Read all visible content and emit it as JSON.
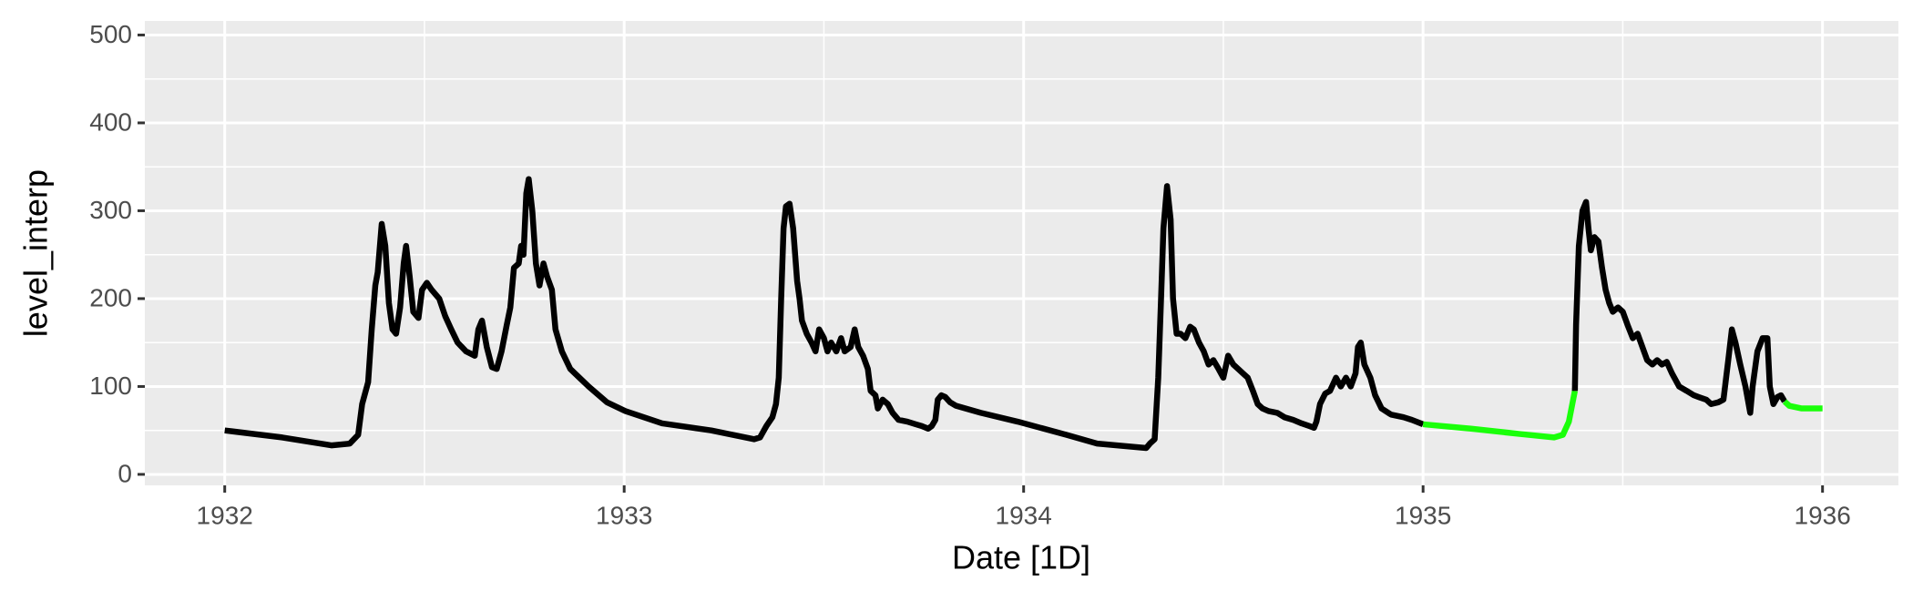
{
  "chart_data": {
    "type": "line",
    "x_label": "Date [1D]",
    "y_label": "level_interp",
    "xlim": [
      1931.8,
      1936.19
    ],
    "ylim": [
      -12.5,
      516
    ],
    "xticks": [
      1932,
      1933,
      1934,
      1935,
      1936
    ],
    "yticks": [
      0,
      100,
      200,
      300,
      400,
      500
    ],
    "grid": true,
    "minor_grid": true,
    "background": "#ebebeb",
    "series": [
      {
        "color": "#000000",
        "x": [
          1932.0,
          1932.144,
          1932.267,
          1932.313,
          1932.334,
          1932.344,
          1932.359,
          1932.368,
          1932.377,
          1932.383,
          1932.393,
          1932.402,
          1932.411,
          1932.42,
          1932.429,
          1932.439,
          1932.448,
          1932.454,
          1932.463,
          1932.472,
          1932.485,
          1932.494,
          1932.506,
          1932.518,
          1932.537,
          1932.552,
          1932.567,
          1932.583,
          1932.604,
          1932.626,
          1932.635,
          1932.644,
          1932.656,
          1932.669,
          1932.681,
          1932.693,
          1932.706,
          1932.715,
          1932.724,
          1932.736,
          1932.742,
          1932.748,
          1932.755,
          1932.761,
          1932.77,
          1932.779,
          1932.788,
          1932.798,
          1932.807,
          1932.819,
          1932.828,
          1932.844,
          1932.865,
          1932.911,
          1932.957,
          1933.003,
          1933.095,
          1933.218,
          1933.325,
          1933.34,
          1933.356,
          1933.371,
          1933.38,
          1933.387,
          1933.393,
          1933.399,
          1933.405,
          1933.414,
          1933.423,
          1933.433,
          1933.439,
          1933.445,
          1933.457,
          1933.469,
          1933.479,
          1933.488,
          1933.5,
          1933.509,
          1933.518,
          1933.531,
          1933.543,
          1933.552,
          1933.567,
          1933.577,
          1933.586,
          1933.598,
          1933.61,
          1933.617,
          1933.629,
          1933.635,
          1933.647,
          1933.66,
          1933.672,
          1933.687,
          1933.709,
          1933.73,
          1933.745,
          1933.761,
          1933.77,
          1933.779,
          1933.785,
          1933.794,
          1933.804,
          1933.816,
          1933.831,
          1933.893,
          1933.985,
          1934.107,
          1934.184,
          1934.307,
          1934.316,
          1934.328,
          1934.337,
          1934.344,
          1934.35,
          1934.359,
          1934.368,
          1934.374,
          1934.383,
          1934.393,
          1934.405,
          1934.417,
          1934.426,
          1934.439,
          1934.451,
          1934.463,
          1934.475,
          1934.488,
          1934.5,
          1934.512,
          1934.525,
          1934.537,
          1934.549,
          1934.561,
          1934.574,
          1934.586,
          1934.598,
          1934.613,
          1934.635,
          1934.653,
          1934.675,
          1934.696,
          1934.715,
          1934.727,
          1934.733,
          1934.742,
          1934.755,
          1934.767,
          1934.782,
          1934.794,
          1934.807,
          1934.819,
          1934.831,
          1934.837,
          1934.844,
          1934.853,
          1934.868,
          1934.88,
          1934.896,
          1934.92,
          1934.951,
          1934.972,
          1935.0
        ],
        "values": [
          50,
          42,
          33,
          35,
          45,
          80,
          105,
          165,
          215,
          230,
          285,
          260,
          195,
          165,
          160,
          190,
          240,
          260,
          225,
          185,
          178,
          210,
          218,
          210,
          200,
          180,
          165,
          150,
          140,
          135,
          165,
          175,
          145,
          122,
          120,
          140,
          170,
          190,
          235,
          240,
          260,
          250,
          320,
          336,
          300,
          240,
          215,
          240,
          225,
          210,
          165,
          140,
          120,
          100,
          82,
          72,
          58,
          50,
          40,
          42,
          55,
          65,
          80,
          110,
          200,
          280,
          305,
          308,
          280,
          220,
          200,
          175,
          160,
          150,
          140,
          165,
          155,
          140,
          150,
          140,
          155,
          140,
          145,
          165,
          145,
          135,
          120,
          95,
          90,
          75,
          85,
          80,
          70,
          62,
          60,
          57,
          55,
          52,
          55,
          62,
          85,
          90,
          88,
          82,
          78,
          70,
          60,
          45,
          35,
          30,
          35,
          40,
          110,
          200,
          280,
          328,
          290,
          200,
          160,
          160,
          155,
          168,
          165,
          150,
          140,
          125,
          130,
          120,
          110,
          135,
          125,
          120,
          115,
          110,
          95,
          80,
          75,
          72,
          70,
          65,
          62,
          58,
          55,
          53,
          60,
          80,
          92,
          95,
          110,
          100,
          110,
          100,
          115,
          145,
          150,
          125,
          110,
          90,
          75,
          68,
          65,
          62,
          57
        ]
      },
      {
        "color": "#1aff0a",
        "x": [
          1935.0,
          1935.12,
          1935.242,
          1935.328,
          1935.35,
          1935.365,
          1935.38
        ],
        "values": [
          57,
          52,
          46,
          42,
          45,
          60,
          95
        ]
      },
      {
        "color": "#000000",
        "x": [
          1935.38,
          1935.383,
          1935.39,
          1935.399,
          1935.408,
          1935.414,
          1935.42,
          1935.429,
          1935.439,
          1935.448,
          1935.457,
          1935.466,
          1935.475,
          1935.488,
          1935.5,
          1935.512,
          1935.525,
          1935.537,
          1935.549,
          1935.561,
          1935.574,
          1935.586,
          1935.598,
          1935.61,
          1935.623,
          1935.641,
          1935.66,
          1935.678,
          1935.69,
          1935.709,
          1935.721,
          1935.739,
          1935.752,
          1935.764,
          1935.773,
          1935.782,
          1935.794,
          1935.807,
          1935.819,
          1935.825,
          1935.837,
          1935.85,
          1935.862,
          1935.868,
          1935.877,
          1935.887,
          1935.896,
          1935.905
        ],
        "values": [
          95,
          170,
          260,
          300,
          310,
          280,
          255,
          270,
          265,
          235,
          210,
          195,
          185,
          190,
          185,
          170,
          155,
          160,
          145,
          130,
          125,
          130,
          125,
          128,
          115,
          100,
          95,
          90,
          88,
          85,
          80,
          82,
          85,
          130,
          165,
          150,
          125,
          100,
          70,
          100,
          140,
          155,
          155,
          100,
          80,
          88,
          90,
          83
        ]
      },
      {
        "color": "#1aff0a",
        "x": [
          1935.905,
          1935.917,
          1935.948,
          1936.0
        ],
        "values": [
          83,
          78,
          75,
          75
        ]
      }
    ]
  }
}
